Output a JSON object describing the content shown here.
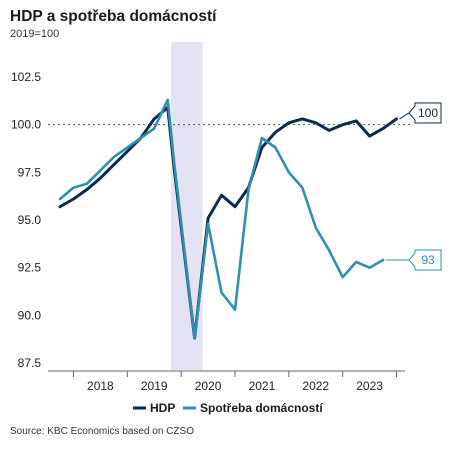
{
  "header": {
    "title": "HDP a spotřeba domácností",
    "subtitle": "2019=100"
  },
  "footer": {
    "source": "Source: KBC Economics based on CZSO"
  },
  "chart_data": {
    "type": "line",
    "title": "HDP a spotřeba domácností",
    "subtitle": "2019=100",
    "xlabel": "",
    "ylabel": "",
    "categories": [
      "2018",
      "2019",
      "2020",
      "2021",
      "2022",
      "2023"
    ],
    "yticks": [
      "102.5",
      "100.0",
      "97.5",
      "95.0",
      "92.5",
      "90.0",
      "87.5"
    ],
    "ylim": [
      87.5,
      102.5
    ],
    "reference_line": 100.0,
    "shaded_period": {
      "from": 2020.0,
      "to": 2020.25
    },
    "legend_position": "bottom",
    "series": [
      {
        "name": "HDP",
        "color": "#0d2b4e",
        "end_label": "100",
        "points": [
          [
            2017.75,
            95.7
          ],
          [
            2018.0,
            96.1
          ],
          [
            2018.25,
            96.6
          ],
          [
            2018.5,
            97.2
          ],
          [
            2018.75,
            97.9
          ],
          [
            2019.0,
            98.6
          ],
          [
            2019.25,
            99.3
          ],
          [
            2019.5,
            100.3
          ],
          [
            2019.75,
            100.9
          ],
          [
            2019.875,
            97.6
          ],
          [
            2020.25,
            88.8
          ],
          [
            2020.5,
            95.1
          ],
          [
            2020.75,
            96.3
          ],
          [
            2021.0,
            95.7
          ],
          [
            2021.25,
            96.7
          ],
          [
            2021.5,
            98.8
          ],
          [
            2021.75,
            99.6
          ],
          [
            2022.0,
            100.1
          ],
          [
            2022.25,
            100.3
          ],
          [
            2022.5,
            100.1
          ],
          [
            2022.75,
            99.7
          ],
          [
            2023.0,
            100.0
          ],
          [
            2023.25,
            100.2
          ],
          [
            2023.5,
            99.4
          ],
          [
            2023.75,
            99.8
          ],
          [
            2024.0,
            100.3
          ]
        ]
      },
      {
        "name": "Spotřeba domácností",
        "color": "#2f8fb0",
        "end_label": "93",
        "points": [
          [
            2017.75,
            96.1
          ],
          [
            2018.0,
            96.7
          ],
          [
            2018.25,
            96.9
          ],
          [
            2018.5,
            97.6
          ],
          [
            2018.75,
            98.3
          ],
          [
            2019.0,
            98.8
          ],
          [
            2019.25,
            99.3
          ],
          [
            2019.5,
            99.8
          ],
          [
            2019.75,
            101.3
          ],
          [
            2019.875,
            97.9
          ],
          [
            2020.25,
            88.8
          ],
          [
            2020.5,
            94.8
          ],
          [
            2020.75,
            91.2
          ],
          [
            2021.0,
            90.3
          ],
          [
            2021.25,
            96.6
          ],
          [
            2021.5,
            99.3
          ],
          [
            2021.75,
            98.8
          ],
          [
            2022.0,
            97.5
          ],
          [
            2022.25,
            96.7
          ],
          [
            2022.5,
            94.6
          ],
          [
            2022.75,
            93.4
          ],
          [
            2023.0,
            92.0
          ],
          [
            2023.25,
            92.8
          ],
          [
            2023.5,
            92.5
          ],
          [
            2023.75,
            92.9
          ]
        ]
      }
    ]
  }
}
